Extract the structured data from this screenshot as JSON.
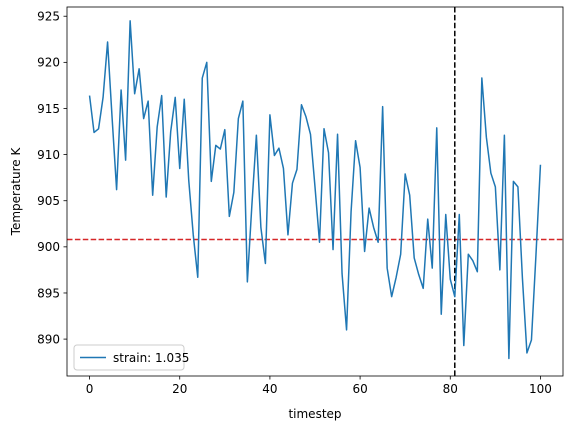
{
  "chart_data": {
    "type": "line",
    "xlabel": "timestep",
    "ylabel": "Temperature K",
    "xlim": [
      -5,
      105
    ],
    "ylim": [
      886,
      926
    ],
    "x_ticks": [
      0,
      20,
      40,
      60,
      80,
      100
    ],
    "y_ticks": [
      890,
      895,
      900,
      905,
      910,
      915,
      920,
      925
    ],
    "legend_position": "lower-left",
    "series": [
      {
        "name": "strain: 1.035",
        "color": "#1f77b4",
        "x": [
          0,
          1,
          2,
          3,
          4,
          5,
          6,
          7,
          8,
          9,
          10,
          11,
          12,
          13,
          14,
          15,
          16,
          17,
          18,
          19,
          20,
          21,
          22,
          23,
          24,
          25,
          26,
          27,
          28,
          29,
          30,
          31,
          32,
          33,
          34,
          35,
          36,
          37,
          38,
          39,
          40,
          41,
          42,
          43,
          44,
          45,
          46,
          47,
          48,
          49,
          50,
          51,
          52,
          53,
          54,
          55,
          56,
          57,
          58,
          59,
          60,
          61,
          62,
          63,
          64,
          65,
          66,
          67,
          68,
          69,
          70,
          71,
          72,
          73,
          74,
          75,
          76,
          77,
          78,
          79,
          80,
          81,
          82,
          83,
          84,
          85,
          86,
          87,
          88,
          89,
          90,
          91,
          92,
          93,
          94,
          95,
          96,
          97,
          98,
          99,
          100
        ],
        "y": [
          916.4,
          912.4,
          912.8,
          916.2,
          922.2,
          914.0,
          906.2,
          917.0,
          909.4,
          924.5,
          916.6,
          919.3,
          913.9,
          915.8,
          905.6,
          913.0,
          916.4,
          905.4,
          912.5,
          916.2,
          908.5,
          916.0,
          907.2,
          901.3,
          896.7,
          918.3,
          920.0,
          907.1,
          911.0,
          910.6,
          912.7,
          903.3,
          905.9,
          913.9,
          915.8,
          896.2,
          904.5,
          912.1,
          902.1,
          898.2,
          914.3,
          909.9,
          910.7,
          908.5,
          901.3,
          906.9,
          908.4,
          915.4,
          914.1,
          912.2,
          906.5,
          900.5,
          912.8,
          910.2,
          899.7,
          912.2,
          897.1,
          891.0,
          903.8,
          911.5,
          908.6,
          899.5,
          904.2,
          902.1,
          900.5,
          915.2,
          897.7,
          894.6,
          896.7,
          899.2,
          907.9,
          905.6,
          898.8,
          897.0,
          895.5,
          903.0,
          897.7,
          912.9,
          892.7,
          903.5,
          896.5,
          894.6,
          903.5,
          889.3,
          899.2,
          898.5,
          897.3,
          918.3,
          911.9,
          908.0,
          906.5,
          897.5,
          912.1,
          887.9,
          907.1,
          906.5,
          896.6,
          888.5,
          889.9,
          899.1,
          908.9
        ]
      }
    ],
    "reference_lines": [
      {
        "orientation": "horizontal",
        "value": 900.8,
        "color": "#d62728",
        "style": "dashed"
      },
      {
        "orientation": "vertical",
        "value": 81,
        "color": "#000000",
        "style": "dashed"
      }
    ]
  }
}
